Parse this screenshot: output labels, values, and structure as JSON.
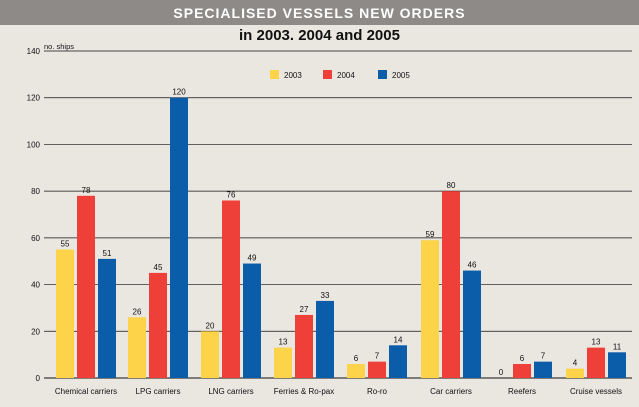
{
  "chart_data": {
    "type": "bar",
    "title": "SPECIALISED VESSELS NEW ORDERS",
    "subtitle": "in 2003. 2004 and 2005",
    "ylabel": "no. ships",
    "xlabel": "",
    "ylim": [
      0,
      140
    ],
    "yticks": [
      0,
      20,
      40,
      60,
      80,
      100,
      120,
      140
    ],
    "grid": true,
    "legend_position": "top-center",
    "categories": [
      "Chemical carriers",
      "LPG carriers",
      "LNG carriers",
      "Ferries & Ro-pax",
      "Ro-ro",
      "Car carriers",
      "Reefers",
      "Cruise vessels"
    ],
    "series": [
      {
        "name": "2003",
        "color": "#fcd349",
        "values": [
          55,
          26,
          20,
          13,
          6,
          59,
          0,
          4
        ]
      },
      {
        "name": "2004",
        "color": "#ee4038",
        "values": [
          78,
          45,
          76,
          27,
          7,
          80,
          6,
          13
        ]
      },
      {
        "name": "2005",
        "color": "#0b5ca9",
        "values": [
          51,
          120,
          49,
          33,
          14,
          46,
          7,
          11
        ]
      }
    ]
  }
}
